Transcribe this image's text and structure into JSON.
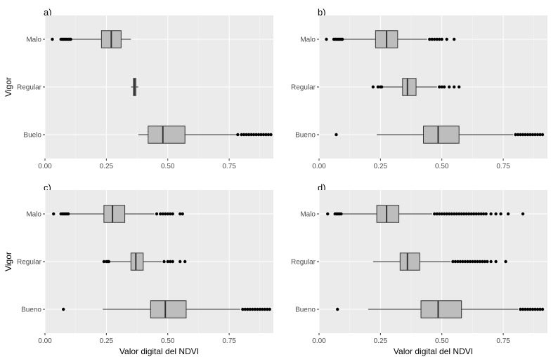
{
  "chart_data": [
    {
      "type": "boxplot",
      "panel_label": "a)",
      "xlabel": "",
      "ylabel": "Vigor",
      "xlim": [
        0,
        0.93
      ],
      "x_ticks": [
        "0.00",
        "0.25",
        "0.50",
        "0.75"
      ],
      "x_tick_values": [
        0,
        0.25,
        0.5,
        0.75
      ],
      "categories": [
        "Malo",
        "Regular",
        "Buelo"
      ],
      "boxes": [
        {
          "name": "Malo",
          "whisker_low": 0.11,
          "q1": 0.23,
          "median": 0.27,
          "q3": 0.31,
          "whisker_high": 0.35,
          "outliers": [
            0.03,
            0.065,
            0.07,
            0.075,
            0.08,
            0.085,
            0.09,
            0.095,
            0.1,
            0.105
          ]
        },
        {
          "name": "Regular",
          "whisker_low": 0.35,
          "q1": 0.36,
          "median": 0.365,
          "q3": 0.37,
          "whisker_high": 0.38,
          "outliers": []
        },
        {
          "name": "Buelo",
          "whisker_low": 0.38,
          "q1": 0.42,
          "median": 0.48,
          "q3": 0.57,
          "whisker_high": 0.78,
          "outliers": [
            0.785,
            0.8,
            0.81,
            0.82,
            0.83,
            0.84,
            0.85,
            0.86,
            0.87,
            0.88,
            0.89,
            0.9,
            0.91,
            0.92
          ]
        }
      ]
    },
    {
      "type": "boxplot",
      "panel_label": "b)",
      "xlabel": "",
      "ylabel": "",
      "xlim": [
        0,
        0.93
      ],
      "x_ticks": [
        "0.00",
        "0.25",
        "0.50",
        "0.75"
      ],
      "x_tick_values": [
        0,
        0.25,
        0.5,
        0.75
      ],
      "categories": [
        "Malo",
        "Regular",
        "Bueno"
      ],
      "boxes": [
        {
          "name": "Malo",
          "whisker_low": 0.1,
          "q1": 0.23,
          "median": 0.275,
          "q3": 0.32,
          "whisker_high": 0.44,
          "outliers": [
            0.03,
            0.06,
            0.065,
            0.07,
            0.075,
            0.08,
            0.085,
            0.09,
            0.095,
            0.45,
            0.46,
            0.47,
            0.48,
            0.49,
            0.5,
            0.52,
            0.55
          ]
        },
        {
          "name": "Regular",
          "whisker_low": 0.26,
          "q1": 0.34,
          "median": 0.36,
          "q3": 0.395,
          "whisker_high": 0.48,
          "outliers": [
            0.22,
            0.24,
            0.25,
            0.255,
            0.49,
            0.5,
            0.51,
            0.53,
            0.55,
            0.57
          ]
        },
        {
          "name": "Bueno",
          "whisker_low": 0.235,
          "q1": 0.425,
          "median": 0.485,
          "q3": 0.57,
          "whisker_high": 0.79,
          "outliers": [
            0.07,
            0.8,
            0.81,
            0.82,
            0.83,
            0.84,
            0.85,
            0.86,
            0.87,
            0.88,
            0.89,
            0.9,
            0.91
          ]
        }
      ]
    },
    {
      "type": "boxplot",
      "panel_label": "c)",
      "xlabel": "Valor digital del NDVI",
      "ylabel": "Vigor",
      "xlim": [
        0,
        0.93
      ],
      "x_ticks": [
        "0.00",
        "0.25",
        "0.50",
        "0.75"
      ],
      "x_tick_values": [
        0,
        0.25,
        0.5,
        0.75
      ],
      "categories": [
        "Malo",
        "Regular",
        "Bueno"
      ],
      "boxes": [
        {
          "name": "Malo",
          "whisker_low": 0.1,
          "q1": 0.24,
          "median": 0.275,
          "q3": 0.325,
          "whisker_high": 0.445,
          "outliers": [
            0.035,
            0.065,
            0.07,
            0.075,
            0.08,
            0.085,
            0.09,
            0.095,
            0.455,
            0.47,
            0.48,
            0.49,
            0.5,
            0.51,
            0.52,
            0.55,
            0.56
          ]
        },
        {
          "name": "Regular",
          "whisker_low": 0.265,
          "q1": 0.35,
          "median": 0.37,
          "q3": 0.4,
          "whisker_high": 0.475,
          "outliers": [
            0.24,
            0.25,
            0.255,
            0.26,
            0.485,
            0.5,
            0.51,
            0.52,
            0.55,
            0.57
          ]
        },
        {
          "name": "Bueno",
          "whisker_low": 0.235,
          "q1": 0.43,
          "median": 0.49,
          "q3": 0.575,
          "whisker_high": 0.795,
          "outliers": [
            0.075,
            0.805,
            0.815,
            0.825,
            0.835,
            0.845,
            0.855,
            0.865,
            0.875,
            0.885,
            0.895,
            0.905,
            0.915
          ]
        }
      ]
    },
    {
      "type": "boxplot",
      "panel_label": "d)",
      "xlabel": "Valor digital del NDVI",
      "ylabel": "",
      "xlim": [
        0,
        0.93
      ],
      "x_ticks": [
        "0.00",
        "0.25",
        "0.50",
        "0.75"
      ],
      "x_tick_values": [
        0,
        0.25,
        0.5,
        0.75
      ],
      "categories": [
        "Malo",
        "Regular",
        "Bueno"
      ],
      "boxes": [
        {
          "name": "Malo",
          "whisker_low": 0.095,
          "q1": 0.235,
          "median": 0.275,
          "q3": 0.325,
          "whisker_high": 0.46,
          "outliers": [
            0.035,
            0.065,
            0.07,
            0.075,
            0.08,
            0.085,
            0.09,
            0.47,
            0.48,
            0.49,
            0.5,
            0.51,
            0.52,
            0.53,
            0.54,
            0.55,
            0.56,
            0.57,
            0.58,
            0.59,
            0.6,
            0.61,
            0.62,
            0.63,
            0.64,
            0.65,
            0.66,
            0.67,
            0.68,
            0.7,
            0.72,
            0.74,
            0.77,
            0.83
          ]
        },
        {
          "name": "Regular",
          "whisker_low": 0.22,
          "q1": 0.33,
          "median": 0.36,
          "q3": 0.41,
          "whisker_high": 0.535,
          "outliers": [
            0.545,
            0.555,
            0.565,
            0.575,
            0.585,
            0.595,
            0.605,
            0.615,
            0.625,
            0.635,
            0.645,
            0.655,
            0.665,
            0.675,
            0.685,
            0.7,
            0.72,
            0.76
          ]
        },
        {
          "name": "Bueno",
          "whisker_low": 0.2,
          "q1": 0.415,
          "median": 0.485,
          "q3": 0.58,
          "whisker_high": 0.81,
          "outliers": [
            0.075,
            0.82,
            0.83,
            0.84,
            0.85,
            0.86,
            0.87,
            0.88,
            0.89,
            0.9,
            0.91
          ]
        }
      ]
    }
  ]
}
